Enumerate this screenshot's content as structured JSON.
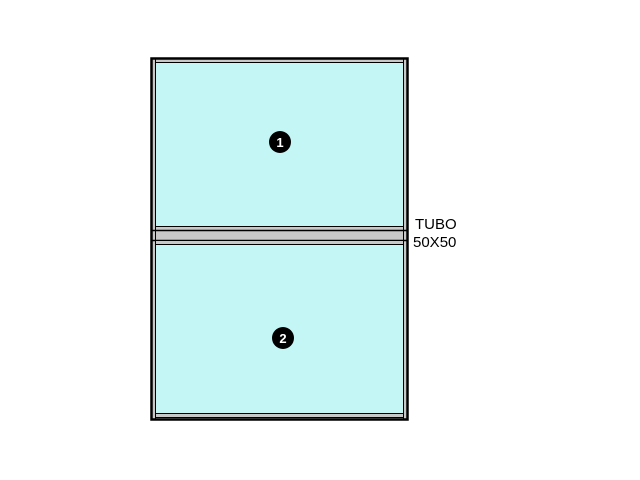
{
  "colors": {
    "glass": "#c4f6f6",
    "frame": "#000000",
    "profile": "#c8c8c8",
    "background": "#ffffff"
  },
  "panels": [
    {
      "number": "1"
    },
    {
      "number": "2"
    }
  ],
  "annotation": {
    "line1": "TUBO",
    "line2": "50X50"
  }
}
